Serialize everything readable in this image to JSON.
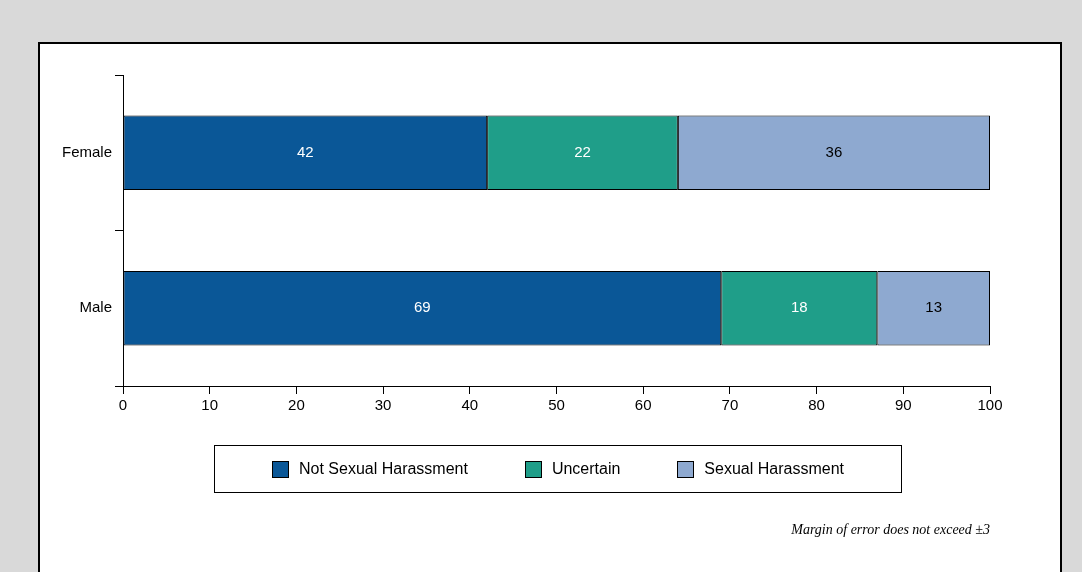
{
  "chart_data": {
    "type": "bar",
    "orientation": "horizontal",
    "stacked": true,
    "categories": [
      "Female",
      "Male"
    ],
    "series": [
      {
        "name": "Not Sexual Harassment",
        "color": "#0a5797",
        "values": [
          42,
          69
        ]
      },
      {
        "name": "Uncertain",
        "color": "#1f9e89",
        "values": [
          22,
          18
        ]
      },
      {
        "name": "Sexual Harassment",
        "color": "#8ea9d0",
        "values": [
          36,
          13
        ]
      }
    ],
    "xlim": [
      0,
      100
    ],
    "xticks": [
      0,
      10,
      20,
      30,
      40,
      50,
      60,
      70,
      80,
      90,
      100
    ],
    "grid": false,
    "data_labels": true,
    "legend": "bottom",
    "annotations": [
      "Margin of error does not exceed ±3"
    ]
  }
}
